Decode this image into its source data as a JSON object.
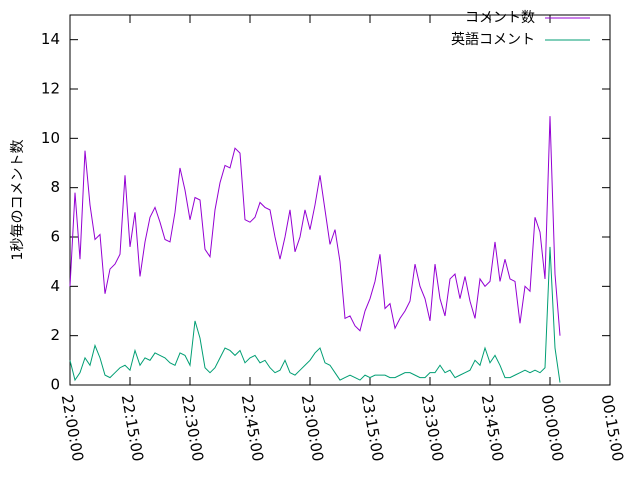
{
  "chart_data": {
    "type": "line",
    "ylabel": "1秒毎のコメント数",
    "x": [
      0,
      1.25,
      2.5,
      3.75,
      5,
      6.25,
      7.5,
      8.75,
      10,
      11.25,
      12.5,
      13.75,
      15,
      16.25,
      17.5,
      18.75,
      20,
      21.25,
      22.5,
      23.75,
      25,
      26.25,
      27.5,
      28.75,
      30,
      31.25,
      32.5,
      33.75,
      35,
      36.25,
      37.5,
      38.75,
      40,
      41.25,
      42.5,
      43.75,
      45,
      46.25,
      47.5,
      48.75,
      50,
      51.25,
      52.5,
      53.75,
      55,
      56.25,
      57.5,
      58.75,
      60,
      61.25,
      62.5,
      63.75,
      65,
      66.25,
      67.5,
      68.75,
      70,
      71.25,
      72.5,
      73.75,
      75,
      76.25,
      77.5,
      78.75,
      80,
      81.25,
      82.5,
      83.75,
      85,
      86.25,
      87.5,
      88.75,
      90,
      91.25,
      92.5,
      93.75,
      95,
      96.25,
      97.5,
      98.75,
      100,
      101.25,
      102.5,
      103.75,
      105,
      106.25,
      107.5,
      108.75,
      110,
      111.25,
      112.5,
      113.75,
      115,
      116.25,
      117.5,
      118.75,
      120,
      121.25,
      122.5
    ],
    "series": [
      {
        "name": "コメント数",
        "color": "#9400d3",
        "values": [
          4.0,
          7.8,
          5.1,
          9.5,
          7.3,
          5.9,
          6.1,
          3.7,
          4.7,
          4.9,
          5.3,
          8.5,
          5.6,
          7.0,
          4.4,
          5.8,
          6.8,
          7.2,
          6.6,
          5.9,
          5.8,
          7.0,
          8.8,
          7.9,
          6.7,
          7.6,
          7.5,
          5.5,
          5.2,
          7.1,
          8.2,
          8.9,
          8.8,
          9.6,
          9.4,
          6.7,
          6.6,
          6.8,
          7.4,
          7.2,
          7.1,
          6.0,
          5.1,
          6.0,
          7.1,
          5.4,
          6.0,
          7.1,
          6.3,
          7.3,
          8.5,
          7.1,
          5.7,
          6.3,
          5.0,
          2.7,
          2.8,
          2.4,
          2.2,
          3.0,
          3.5,
          4.2,
          5.3,
          3.1,
          3.3,
          2.3,
          2.7,
          3.0,
          3.4,
          4.9,
          4.0,
          3.5,
          2.6,
          4.9,
          3.5,
          2.8,
          4.3,
          4.5,
          3.5,
          4.4,
          3.4,
          2.7,
          4.3,
          4.0,
          4.2,
          5.8,
          4.2,
          5.1,
          4.3,
          4.2,
          2.5,
          4.0,
          3.8,
          6.8,
          6.2,
          4.3,
          10.9,
          4.5,
          2.0
        ]
      },
      {
        "name": "英語コメント",
        "color": "#009e73",
        "values": [
          1.0,
          0.2,
          0.5,
          1.1,
          0.8,
          1.6,
          1.1,
          0.4,
          0.3,
          0.5,
          0.7,
          0.8,
          0.6,
          1.4,
          0.8,
          1.1,
          1.0,
          1.3,
          1.2,
          1.1,
          0.9,
          0.8,
          1.3,
          1.2,
          0.8,
          2.6,
          1.9,
          0.7,
          0.5,
          0.7,
          1.1,
          1.5,
          1.4,
          1.2,
          1.4,
          0.9,
          1.1,
          1.2,
          0.9,
          1.0,
          0.7,
          0.5,
          0.6,
          1.0,
          0.5,
          0.4,
          0.6,
          0.8,
          1.0,
          1.3,
          1.5,
          0.9,
          0.8,
          0.5,
          0.2,
          0.3,
          0.4,
          0.3,
          0.2,
          0.4,
          0.3,
          0.4,
          0.4,
          0.4,
          0.3,
          0.3,
          0.4,
          0.5,
          0.5,
          0.4,
          0.3,
          0.3,
          0.5,
          0.5,
          0.8,
          0.5,
          0.6,
          0.3,
          0.4,
          0.5,
          0.6,
          1.0,
          0.8,
          1.5,
          0.9,
          1.2,
          0.8,
          0.3,
          0.3,
          0.4,
          0.5,
          0.6,
          0.5,
          0.6,
          0.5,
          0.7,
          5.6,
          1.5,
          0.1
        ]
      }
    ],
    "xlim": [
      0,
      135
    ],
    "xticks": [
      {
        "value": 0,
        "label": "22:00:00"
      },
      {
        "value": 15,
        "label": "22:15:00"
      },
      {
        "value": 30,
        "label": "22:30:00"
      },
      {
        "value": 45,
        "label": "22:45:00"
      },
      {
        "value": 60,
        "label": "23:00:00"
      },
      {
        "value": 75,
        "label": "23:15:00"
      },
      {
        "value": 90,
        "label": "23:30:00"
      },
      {
        "value": 105,
        "label": "23:45:00"
      },
      {
        "value": 120,
        "label": "00:00:00"
      },
      {
        "value": 135,
        "label": "00:15:00"
      }
    ],
    "ylim": [
      0,
      15
    ],
    "yticks": [
      0,
      2,
      4,
      6,
      8,
      10,
      12,
      14
    ],
    "legend": "top-right"
  }
}
